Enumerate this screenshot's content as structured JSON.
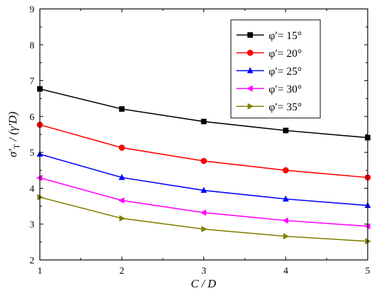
{
  "chart_data": {
    "type": "line",
    "xlabel": "C / D",
    "ylabel_parts": {
      "sigma": "σ′",
      "sub": "T",
      "rest": " / (γ′D)"
    },
    "xlim": [
      1,
      5
    ],
    "ylim": [
      2,
      9
    ],
    "x_ticks": [
      1,
      2,
      3,
      4,
      5
    ],
    "y_ticks": [
      2,
      3,
      4,
      5,
      6,
      7,
      8,
      9
    ],
    "grid": false,
    "legend_position": "top-right",
    "x": [
      1,
      2,
      3,
      4,
      5
    ],
    "series": [
      {
        "name": "φ′= 15°",
        "color": "#000000",
        "marker": "square",
        "values": [
          6.77,
          6.21,
          5.86,
          5.61,
          5.41
        ]
      },
      {
        "name": "φ′= 20°",
        "color": "#ff0000",
        "marker": "circle",
        "values": [
          5.77,
          5.13,
          4.76,
          4.5,
          4.3
        ]
      },
      {
        "name": "φ′= 25°",
        "color": "#0000ff",
        "marker": "triangle-up",
        "values": [
          4.95,
          4.3,
          3.94,
          3.7,
          3.52
        ]
      },
      {
        "name": "φ′= 30°",
        "color": "#ff00ff",
        "marker": "triangle-left",
        "values": [
          4.29,
          3.66,
          3.32,
          3.1,
          2.94
        ]
      },
      {
        "name": "φ′= 35°",
        "color": "#808000",
        "marker": "triangle-right",
        "values": [
          3.75,
          3.16,
          2.86,
          2.66,
          2.52
        ]
      }
    ]
  }
}
